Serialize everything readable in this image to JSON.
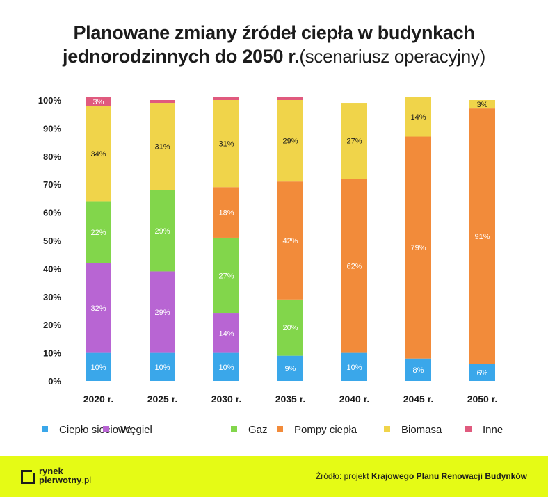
{
  "title": {
    "line1": "Planowane zmiany źródeł ciepła w budynkach",
    "line2_bold": "jednorodzinnych do 2050 r.",
    "line2_normal": "(scenariusz operacyjny)"
  },
  "chart_data": {
    "type": "bar",
    "stacked": true,
    "title": "Planowane zmiany źródeł ciepła w budynkach jednorodzinnych do 2050 r.(scenariusz operacyjny)",
    "categories": [
      "2020 r.",
      "2025 r.",
      "2030 r.",
      "2035 r.",
      "2040 r.",
      "2045 r.",
      "2050 r."
    ],
    "ylim": [
      0,
      100
    ],
    "yticks": [
      "0%",
      "10%",
      "20%",
      "30%",
      "40%",
      "50%",
      "60%",
      "70%",
      "80%",
      "90%",
      "100%"
    ],
    "legend_position": "bottom",
    "series": [
      {
        "name": "Ciepło sieciowe",
        "color": "#3aa7ea",
        "values": [
          10,
          10,
          10,
          9,
          10,
          8,
          6
        ],
        "labels": [
          "10%",
          "10%",
          "10%",
          "9%",
          "10%",
          "8%",
          "6%"
        ]
      },
      {
        "name": "Węgiel",
        "color": "#b865d3",
        "values": [
          32,
          29,
          14,
          0,
          0,
          0,
          0
        ],
        "labels": [
          "32%",
          "29%",
          "14%",
          "",
          "",
          "",
          ""
        ]
      },
      {
        "name": "Gaz",
        "color": "#82d64b",
        "values": [
          22,
          29,
          27,
          20,
          0,
          0,
          0
        ],
        "labels": [
          "22%",
          "29%",
          "27%",
          "20%",
          "",
          "",
          ""
        ]
      },
      {
        "name": "Pompy ciepła",
        "color": "#f28b3a",
        "values": [
          0,
          0,
          18,
          42,
          62,
          79,
          91
        ],
        "labels": [
          "",
          "",
          "18%",
          "42%",
          "62%",
          "79%",
          "91%"
        ]
      },
      {
        "name": "Biomasa",
        "color": "#f0d44a",
        "values": [
          34,
          31,
          31,
          29,
          27,
          14,
          3
        ],
        "labels": [
          "34%",
          "31%",
          "31%",
          "29%",
          "27%",
          "14%",
          "3%"
        ]
      },
      {
        "name": "Inne",
        "color": "#e05a7e",
        "values": [
          3,
          1,
          1,
          1,
          0,
          0,
          0
        ],
        "labels": [
          "3%",
          "",
          "",
          "",
          "",
          "",
          ""
        ]
      }
    ]
  },
  "footer": {
    "logo_line1": "rynek",
    "logo_line2": "pierwotny",
    "logo_suffix": ".pl",
    "source_prefix": "Źródło: projekt ",
    "source_bold": "Krajowego Planu Renowacji Budynków"
  },
  "colors": {
    "footer_bg": "#e5fb15",
    "text": "#1c1c1c"
  }
}
